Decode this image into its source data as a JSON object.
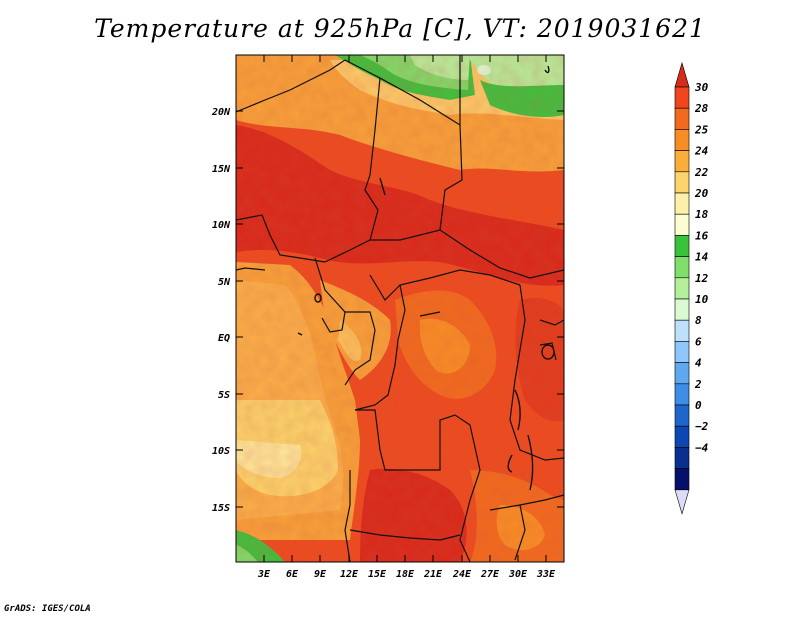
{
  "title": "Temperature at 925hPa [C], VT: 2019031621",
  "credit": "GrADS: IGES/COLA",
  "lat_labels": [
    "20N",
    "15N",
    "10N",
    "5N",
    "EQ",
    "5S",
    "10S",
    "15S"
  ],
  "lon_labels": [
    "3E",
    "6E",
    "9E",
    "12E",
    "15E",
    "18E",
    "21E",
    "24E",
    "27E",
    "30E",
    "33E"
  ],
  "colorbar": {
    "labels": [
      "30",
      "28",
      "25",
      "24",
      "22",
      "20",
      "18",
      "16",
      "14",
      "12",
      "10",
      "8",
      "6",
      "4",
      "2",
      "0",
      "−2",
      "−4"
    ],
    "colors": [
      "#d62c1a",
      "#f0451e",
      "#f26a1e",
      "#f98d25",
      "#fbad3a",
      "#fcd46a",
      "#fdf0a8",
      "#fdfdd1",
      "#39c33c",
      "#7ee06a",
      "#b4f09a",
      "#d9fad2",
      "#bde0fc",
      "#8fc6fb",
      "#5ea8f0",
      "#3e8de6",
      "#1f66cc",
      "#0b48b4",
      "#07308f",
      "#06106a",
      "#dcdcf8"
    ]
  }
}
